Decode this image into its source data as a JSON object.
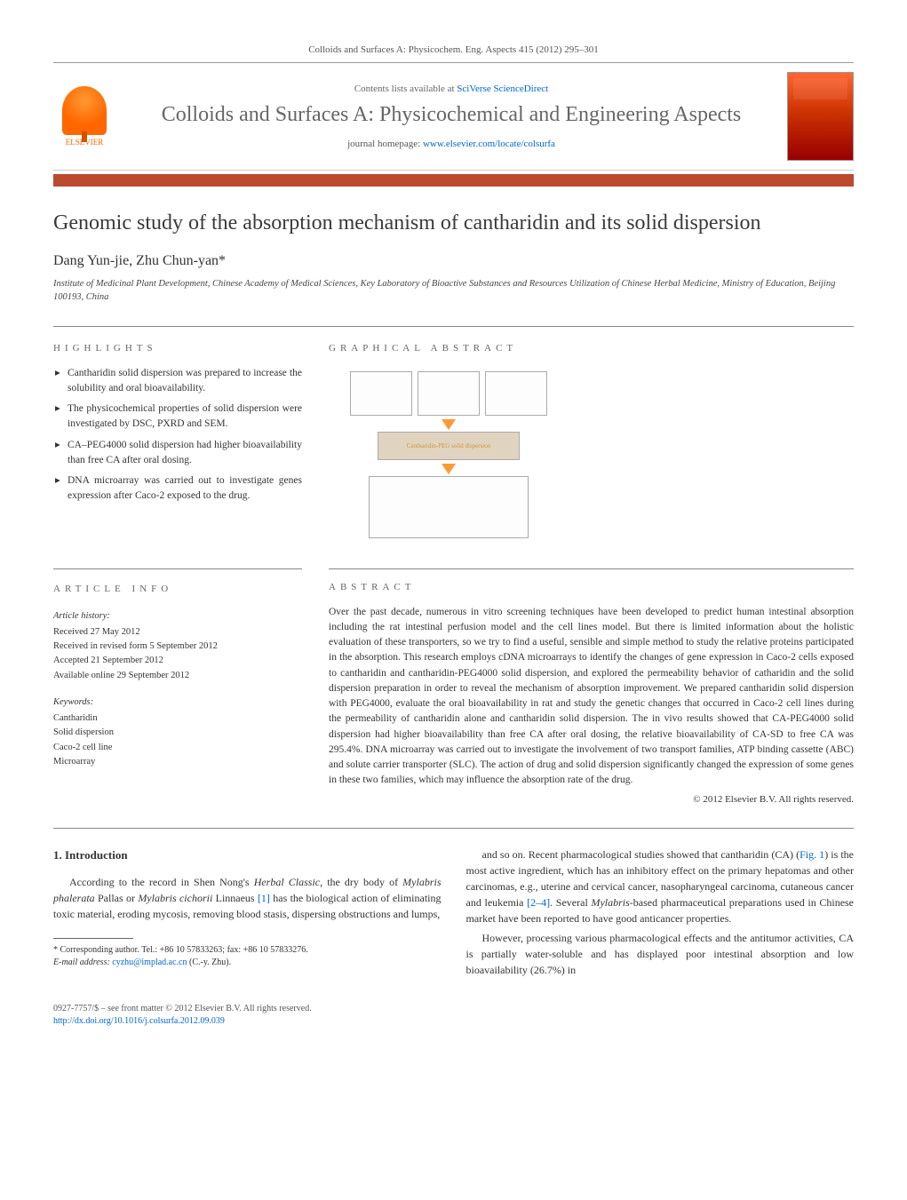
{
  "header": {
    "citation": "Colloids and Surfaces A: Physicochem. Eng. Aspects 415 (2012) 295–301",
    "contents_prefix": "Contents lists available at ",
    "contents_link": "SciVerse ScienceDirect",
    "journal_title": "Colloids and Surfaces A: Physicochemical and Engineering Aspects",
    "homepage_prefix": "journal homepage: ",
    "homepage_link": "www.elsevier.com/locate/colsurfa",
    "publisher": "ELSEVIER"
  },
  "article": {
    "title": "Genomic study of the absorption mechanism of cantharidin and its solid dispersion",
    "authors": "Dang Yun-jie, Zhu Chun-yan*",
    "affiliation": "Institute of Medicinal Plant Development, Chinese Academy of Medical Sciences, Key Laboratory of Bioactive Substances and Resources Utilization of Chinese Herbal Medicine, Ministry of Education, Beijing 100193, China"
  },
  "highlights": {
    "heading": "HIGHLIGHTS",
    "items": [
      "Cantharidin solid dispersion was prepared to increase the solubility and oral bioavailability.",
      "The physicochemical properties of solid dispersion were investigated by DSC, PXRD and SEM.",
      "CA–PEG4000 solid dispersion had higher bioavailability than free CA after oral dosing.",
      "DNA microarray was carried out to investigate genes expression after Caco-2 exposed to the drug."
    ]
  },
  "graphical": {
    "heading": "GRAPHICAL ABSTRACT",
    "mid_label": "Cantharidin-PEG solid dispersion"
  },
  "info": {
    "heading": "ARTICLE INFO",
    "history_label": "Article history:",
    "history": [
      "Received 27 May 2012",
      "Received in revised form 5 September 2012",
      "Accepted 21 September 2012",
      "Available online 29 September 2012"
    ],
    "keywords_label": "Keywords:",
    "keywords": [
      "Cantharidin",
      "Solid dispersion",
      "Caco-2 cell line",
      "Microarray"
    ]
  },
  "abstract": {
    "heading": "ABSTRACT",
    "text": "Over the past decade, numerous in vitro screening techniques have been developed to predict human intestinal absorption including the rat intestinal perfusion model and the cell lines model. But there is limited information about the holistic evaluation of these transporters, so we try to find a useful, sensible and simple method to study the relative proteins participated in the absorption. This research employs cDNA microarrays to identify the changes of gene expression in Caco-2 cells exposed to cantharidin and cantharidin-PEG4000 solid dispersion, and explored the permeability behavior of catharidin and the solid dispersion preparation in order to reveal the mechanism of absorption improvement. We prepared cantharidin solid dispersion with PEG4000, evaluate the oral bioavailability in rat and study the genetic changes that occurred in Caco-2 cell lines during the permeability of cantharidin alone and cantharidin solid dispersion. The in vivo results showed that CA-PEG4000 solid dispersion had higher bioavailability than free CA after oral dosing, the relative bioavailability of CA-SD to free CA was 295.4%. DNA microarray was carried out to investigate the involvement of two transport families, ATP binding cassette (ABC) and solute carrier transporter (SLC). The action of drug and solid dispersion significantly changed the expression of some genes in these two families, which may influence the absorption rate of the drug.",
    "copyright": "© 2012 Elsevier B.V. All rights reserved."
  },
  "body": {
    "section_num": "1.",
    "section_title": "Introduction",
    "left_para": "According to the record in Shen Nong's Herbal Classic, the dry body of Mylabris phalerata Pallas or Mylabris cichorii Linnaeus [1] has the biological action of eliminating toxic material, eroding mycosis, removing blood stasis, dispersing obstructions and lumps,",
    "right_para1": "and so on. Recent pharmacological studies showed that cantharidin (CA) (Fig. 1) is the most active ingredient, which has an inhibitory effect on the primary hepatomas and other carcinomas, e.g., uterine and cervical cancer, nasopharyngeal carcinoma, cutaneous cancer and leukemia [2–4]. Several Mylabris-based pharmaceutical preparations used in Chinese market have been reported to have good anticancer properties.",
    "right_para2": "However, processing various pharmacological effects and the antitumor activities, CA is partially water-soluble and has displayed poor intestinal absorption and low bioavailability (26.7%) in"
  },
  "footnote": {
    "corr": "* Corresponding author. Tel.: +86 10 57833263; fax: +86 10 57833276.",
    "email_label": "E-mail address: ",
    "email": "cyzhu@implad.ac.cn",
    "email_suffix": " (C.-y. Zhu)."
  },
  "bottom": {
    "issn": "0927-7757/$ – see front matter © 2012 Elsevier B.V. All rights reserved.",
    "doi": "http://dx.doi.org/10.1016/j.colsurfa.2012.09.039"
  },
  "colors": {
    "accent_bar": "#bb4a2e",
    "link": "#0066cc",
    "elsevier": "#ff6600"
  }
}
